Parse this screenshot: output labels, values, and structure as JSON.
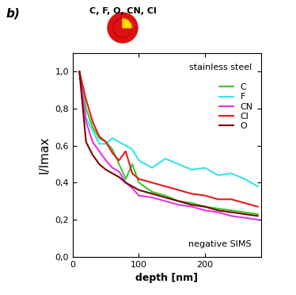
{
  "chart_data": {
    "type": "line",
    "panel_label": "b)",
    "icon_label": "C, F, O, CN, Cl",
    "annotations": [
      "stainless steel",
      "negative SIMS"
    ],
    "x_label": "depth [nm]",
    "y_label": "I/Imax",
    "x": [
      10,
      20,
      30,
      40,
      50,
      60,
      70,
      80,
      90,
      100,
      120,
      140,
      160,
      180,
      200,
      220,
      240,
      260,
      280
    ],
    "series": [
      {
        "name": "C",
        "color": "#33cc33",
        "values": [
          1.0,
          0.8,
          0.7,
          0.64,
          0.62,
          0.58,
          0.5,
          0.42,
          0.5,
          0.4,
          0.35,
          0.33,
          0.3,
          0.29,
          0.27,
          0.26,
          0.25,
          0.24,
          0.23
        ]
      },
      {
        "name": "F",
        "color": "#33e6e6",
        "values": [
          1.0,
          0.75,
          0.68,
          0.61,
          0.61,
          0.64,
          0.62,
          0.6,
          0.58,
          0.52,
          0.48,
          0.53,
          0.5,
          0.47,
          0.48,
          0.44,
          0.45,
          0.42,
          0.38
        ]
      },
      {
        "name": "CN",
        "color": "#e633e6",
        "values": [
          1.0,
          0.73,
          0.62,
          0.57,
          0.52,
          0.48,
          0.46,
          0.4,
          0.37,
          0.33,
          0.32,
          0.3,
          0.28,
          0.27,
          0.25,
          0.24,
          0.22,
          0.21,
          0.2
        ]
      },
      {
        "name": "Cl",
        "color": "#e61a1a",
        "values": [
          1.0,
          0.85,
          0.73,
          0.65,
          0.62,
          0.56,
          0.52,
          0.57,
          0.45,
          0.42,
          0.4,
          0.38,
          0.36,
          0.34,
          0.33,
          0.31,
          0.31,
          0.29,
          0.27
        ]
      },
      {
        "name": "O",
        "color": "#800000",
        "values": [
          1.0,
          0.62,
          0.55,
          0.5,
          0.47,
          0.45,
          0.43,
          0.4,
          0.38,
          0.36,
          0.34,
          0.32,
          0.3,
          0.28,
          0.27,
          0.25,
          0.24,
          0.23,
          0.22
        ]
      }
    ],
    "xlim": [
      0,
      285
    ],
    "xticks": [
      0,
      100,
      200
    ],
    "ylim": [
      0,
      1.1
    ],
    "yticks": [
      {
        "value": 0.0,
        "label": "0,0"
      },
      {
        "value": 0.2,
        "label": "0,2"
      },
      {
        "value": 0.4,
        "label": "0,4"
      },
      {
        "value": 0.6,
        "label": "0,6"
      },
      {
        "value": 0.8,
        "label": "0,8"
      },
      {
        "value": 1.0,
        "label": "1,0"
      }
    ],
    "legend": "upper right",
    "grid": false
  }
}
